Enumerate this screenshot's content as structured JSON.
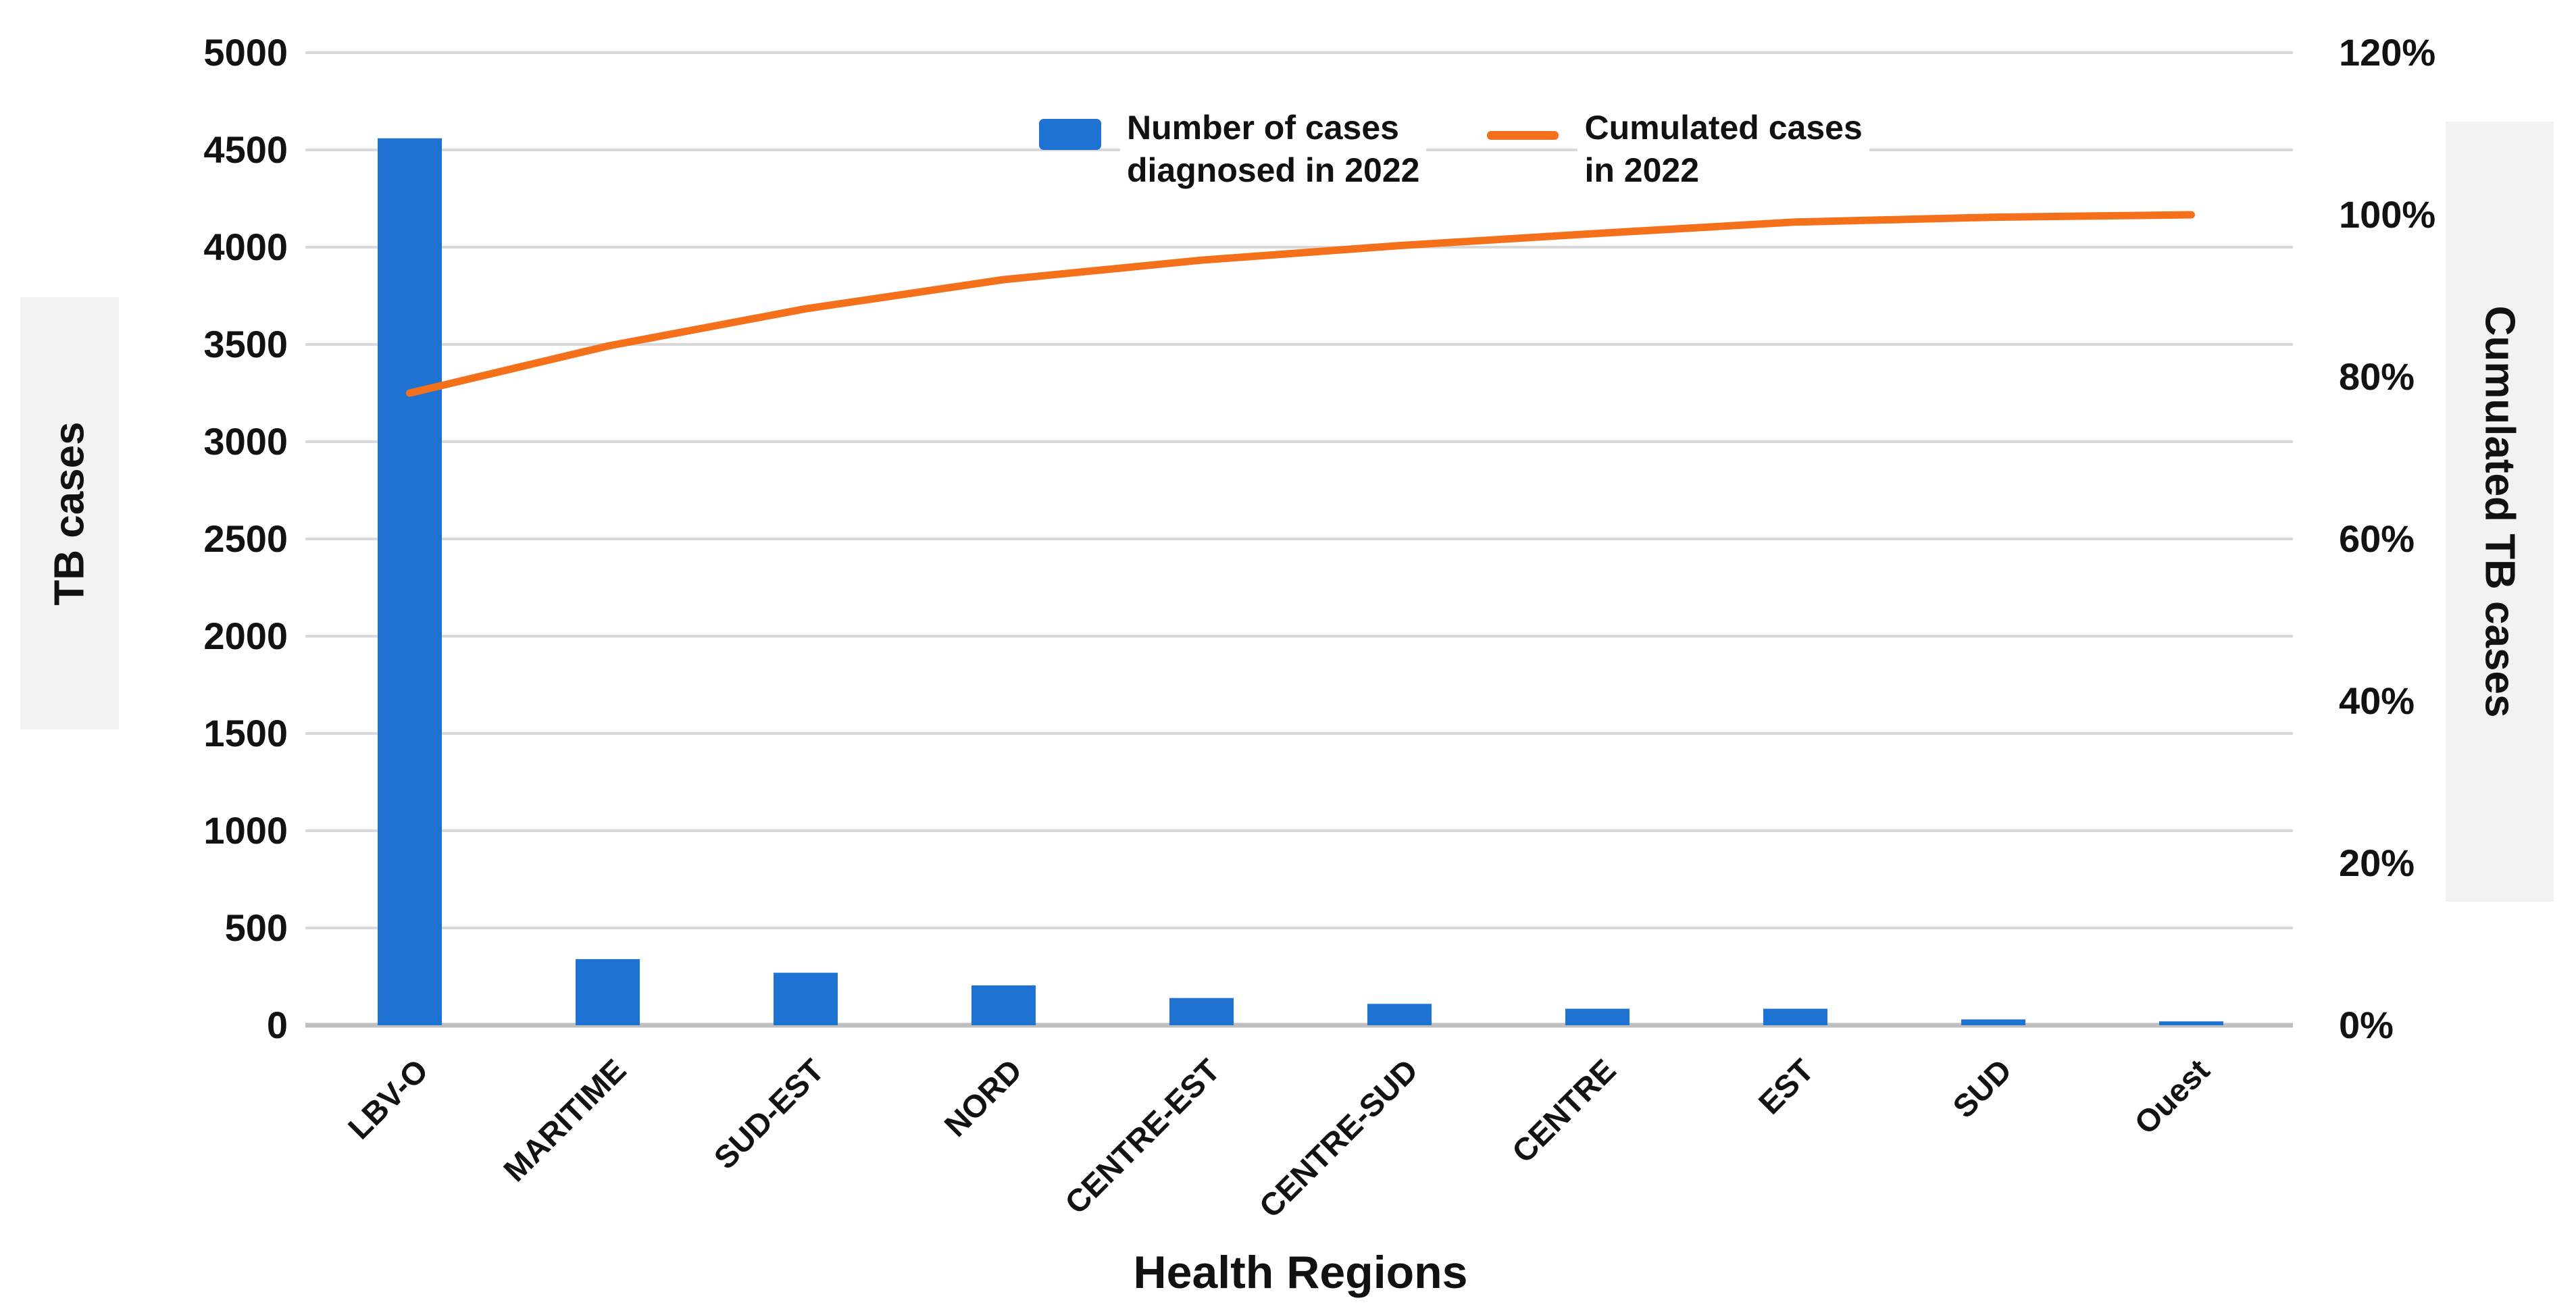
{
  "chart_data": {
    "type": "bar+line (Pareto)",
    "categories": [
      "LBV-O",
      "MARITIME",
      "SUD-EST",
      "NORD",
      "CENTRE-EST",
      "CENTRE-SUD",
      "CENTRE",
      "EST",
      "SUD",
      "Ouest"
    ],
    "series": [
      {
        "name": "Number of cases diagnosed in 2022",
        "type": "bar",
        "axis": "left",
        "color": "#1E73D2",
        "values": [
          4560,
          340,
          270,
          205,
          140,
          110,
          85,
          85,
          30,
          20
        ]
      },
      {
        "name": "Cumulated cases in 2022",
        "type": "line",
        "axis": "right",
        "color": "#F5701A",
        "values_percent": [
          78,
          83.8,
          88.4,
          92,
          94.4,
          96.2,
          97.7,
          99.1,
          99.7,
          100
        ]
      }
    ],
    "left_axis": {
      "title": "TB cases",
      "min": 0,
      "max": 5000,
      "step": 500,
      "tick_labels": [
        "0",
        "500",
        "1000",
        "1500",
        "2000",
        "2500",
        "3000",
        "3500",
        "4000",
        "4500",
        "5000"
      ]
    },
    "right_axis": {
      "title": "Cumulated TB cases",
      "min_percent": 0,
      "max_percent": 120,
      "step_percent": 20,
      "tick_labels": [
        "0%",
        "20%",
        "40%",
        "60%",
        "80%",
        "100%",
        "120%"
      ]
    },
    "x_axis": {
      "title": "Health Regions"
    },
    "gridlines": "horizontal",
    "legend_position": "top-center"
  },
  "axis_titles": {
    "left": "TB cases",
    "right": "Cumulated TB cases",
    "x": "Health Regions"
  },
  "legend": {
    "bar": {
      "line1": "Number of cases",
      "line2": "diagnosed in 2022"
    },
    "line": {
      "line1": "Cumulated cases",
      "line2": "in 2022"
    }
  },
  "colors": {
    "bar": "#1E73D2",
    "line": "#F5701A",
    "grid": "#D9D9D9",
    "axis_line": "#BFBFBF",
    "text": "#111111",
    "title_box_bg": "#F2F2F2"
  }
}
